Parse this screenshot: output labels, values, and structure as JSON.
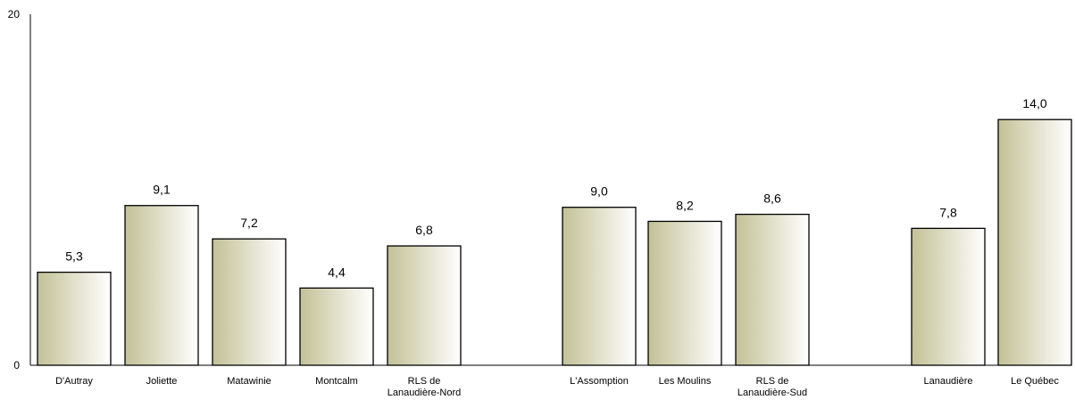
{
  "chart_data": {
    "type": "bar",
    "ylim": [
      0,
      20
    ],
    "yticks": [
      "0",
      "20"
    ],
    "grid": false,
    "groups": [
      [
        "D'Autray",
        "Joliette",
        "Matawinie",
        "Montcalm",
        "RLS de Lanaudière-Nord"
      ],
      [
        "L'Assomption",
        "Les Moulins",
        "RLS de Lanaudière-Sud"
      ],
      [
        "Lanaudière",
        "Le Québec"
      ]
    ],
    "categories": [
      {
        "lines": [
          "D'Autray"
        ]
      },
      {
        "lines": [
          "Joliette"
        ]
      },
      {
        "lines": [
          "Matawinie"
        ]
      },
      {
        "lines": [
          "Montcalm"
        ]
      },
      {
        "lines": [
          "RLS de",
          "Lanaudière-Nord"
        ]
      },
      {
        "lines": [
          "L'Assomption"
        ]
      },
      {
        "lines": [
          "Les Moulins"
        ]
      },
      {
        "lines": [
          "RLS de",
          "Lanaudière-Sud"
        ]
      },
      {
        "lines": [
          "Lanaudière"
        ]
      },
      {
        "lines": [
          "Le Québec"
        ]
      }
    ],
    "values": [
      5.3,
      9.1,
      7.2,
      4.4,
      6.8,
      9.0,
      8.2,
      8.6,
      7.8,
      14.0
    ],
    "value_labels": [
      "5,3",
      "9,1",
      "7,2",
      "4,4",
      "6,8",
      "9,0",
      "8,2",
      "8,6",
      "7,8",
      "14,0"
    ],
    "bar_gradient": [
      "#c3c196",
      "#ffffff"
    ]
  }
}
